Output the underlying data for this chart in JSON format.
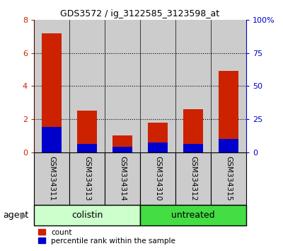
{
  "title": "GDS3572 / ig_3122585_3123598_at",
  "samples": [
    "GSM334311",
    "GSM334313",
    "GSM334314",
    "GSM334310",
    "GSM334312",
    "GSM334315"
  ],
  "count_values": [
    7.2,
    2.5,
    1.0,
    1.8,
    2.6,
    4.9
  ],
  "percentile_values": [
    1.52,
    0.5,
    0.32,
    0.56,
    0.5,
    0.8
  ],
  "groups": [
    {
      "label": "colistin",
      "color_bg": "#ccffcc",
      "color_border": "#00bb00",
      "span": [
        0,
        3
      ]
    },
    {
      "label": "untreated",
      "color_bg": "#44dd44",
      "color_border": "#00bb00",
      "span": [
        3,
        6
      ]
    }
  ],
  "group_label": "agent",
  "ylim_left": [
    0,
    8
  ],
  "ylim_right": [
    0,
    100
  ],
  "yticks_left": [
    0,
    2,
    4,
    6,
    8
  ],
  "yticks_right": [
    0,
    25,
    50,
    75,
    100
  ],
  "left_axis_color": "#cc2200",
  "right_axis_color": "#0000cc",
  "bar_color_red": "#cc2200",
  "bar_color_blue": "#0000cc",
  "bg_color": "#ffffff",
  "grid_color": "#000000",
  "sample_bg_color": "#cccccc",
  "bar_width": 0.55,
  "legend_label_count": "count",
  "legend_label_percentile": "percentile rank within the sample"
}
